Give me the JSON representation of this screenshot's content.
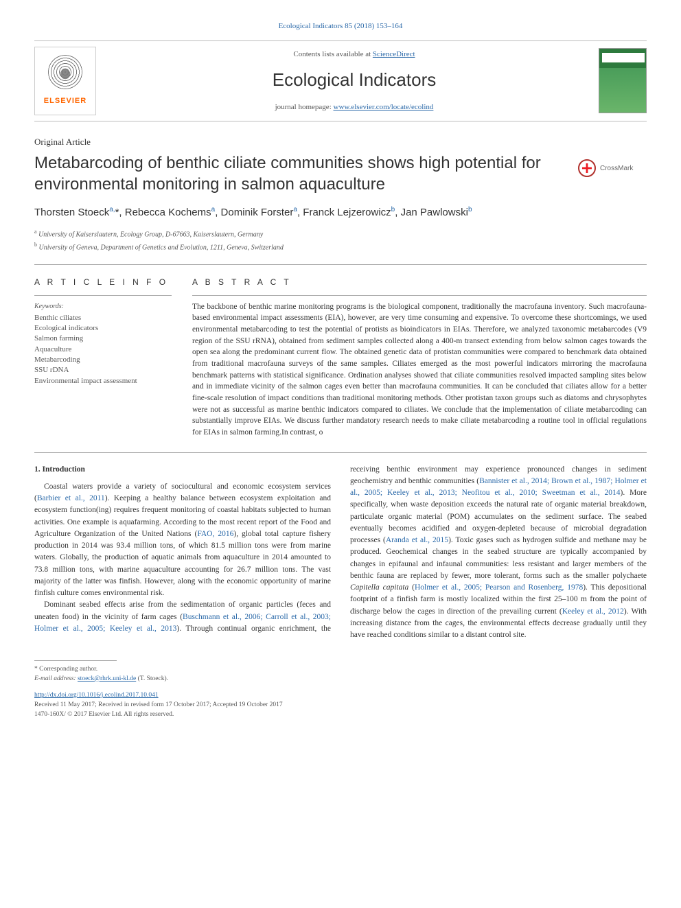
{
  "journal_ref": {
    "text": "Ecological Indicators 85 (2018) 153–164",
    "color": "#2968a8",
    "fontsize": 11
  },
  "header": {
    "contents_prefix": "Contents lists available at ",
    "contents_link": "ScienceDirect",
    "journal_title": "Ecological Indicators",
    "homepage_prefix": "journal homepage: ",
    "homepage_link": "www.elsevier.com/locate/ecolind",
    "elsevier_label": "ELSEVIER",
    "cover_colors": {
      "top": "#2d7a3d",
      "bottom": "#6ab56a"
    }
  },
  "article": {
    "type": "Original Article",
    "title": "Metabarcoding of benthic ciliate communities shows high potential for environmental monitoring in salmon aquaculture",
    "crossmark_label": "CrossMark"
  },
  "authors_html": "Thorsten Stoeck<sup>a,</sup>*, Rebecca Kochems<sup>a</sup>, Dominik Forster<sup>a</sup>, Franck Lejzerowicz<sup>b</sup>, Jan Pawlowski<sup>b</sup>",
  "affiliations": [
    {
      "sup": "a",
      "text": "University of Kaiserslautern, Ecology Group, D-67663, Kaiserslautern, Germany"
    },
    {
      "sup": "b",
      "text": "University of Geneva, Department of Genetics and Evolution, 1211, Geneva, Switzerland"
    }
  ],
  "info": {
    "heading": "A R T I C L E  I N F O",
    "keywords_label": "Keywords:",
    "keywords": [
      "Benthic ciliates",
      "Ecological indicators",
      "Salmon farming",
      "Aquaculture",
      "Metabarcoding",
      "SSU rDNA",
      "Environmental impact assessment"
    ]
  },
  "abstract": {
    "heading": "A B S T R A C T",
    "text": "The backbone of benthic marine monitoring programs is the biological component, traditionally the macrofauna inventory. Such macrofauna-based environmental impact assessments (EIA), however, are very time consuming and expensive. To overcome these shortcomings, we used environmental metabarcoding to test the potential of protists as bioindicators in EIAs. Therefore, we analyzed taxonomic metabarcodes (V9 region of the SSU rRNA), obtained from sediment samples collected along a 400-m transect extending from below salmon cages towards the open sea along the predominant current flow. The obtained genetic data of protistan communities were compared to benchmark data obtained from traditional macrofauna surveys of the same samples. Ciliates emerged as the most powerful indicators mirroring the macrofauna benchmark patterns with statistical significance. Ordination analyses showed that ciliate communities resolved impacted sampling sites below and in immediate vicinity of the salmon cages even better than macrofauna communities. It can be concluded that ciliates allow for a better fine-scale resolution of impact conditions than traditional monitoring methods. Other protistan taxon groups such as diatoms and chrysophytes were not as successful as marine benthic indicators compared to ciliates. We conclude that the implementation of ciliate metabarcoding can substantially improve EIAs. We discuss further mandatory research needs to make ciliate metabarcoding a routine tool in official regulations for EIAs in salmon farming.In contrast, o"
  },
  "body": {
    "section_number": "1.",
    "section_title": "Introduction",
    "p1_a": "Coastal waters provide a variety of sociocultural and economic ecosystem services (",
    "p1_cite1": "Barbier et al., 2011",
    "p1_b": "). Keeping a healthy balance between ecosystem exploitation and ecosystem function(ing) requires frequent monitoring of coastal habitats subjected to human activities. One example is aquafarming. According to the most recent report of the Food and Agriculture Organization of the United Nations (",
    "p1_cite2": "FAO, 2016",
    "p1_c": "), global total capture fishery production in 2014 was 93.4 million tons, of which 81.5 million tons were from marine waters. Globally, the production of aquatic animals from aquaculture in 2014 amounted to 73.8 million tons, with marine aquaculture accounting for 26.7 million tons. The vast majority of the latter was finfish. However, along with the economic opportunity of marine finfish culture comes environmental risk.",
    "p2_a": "Dominant seabed effects arise from the sedimentation of organic particles (feces and uneaten food) in the vicinity of farm cages (",
    "p2_cite1": "Buschmann et al., 2006; Carroll et al., 2003; Holmer et al., 2005; Keeley et al., 2013",
    "p2_b": "). Through continual organic enrichment, the receiving benthic environment may experience pronounced changes in sediment geochemistry and benthic communities (",
    "p2_cite2": "Bannister et al., 2014; Brown et al., 1987; Holmer et al., 2005; Keeley et al., 2013; Neofitou et al., 2010; Sweetman et al., 2014",
    "p2_c": "). More specifically, when waste deposition exceeds the natural rate of organic material breakdown, particulate organic material (POM) accumulates on the sediment surface. The seabed eventually becomes acidified and oxygen-depleted because of microbial degradation processes (",
    "p2_cite3": "Aranda et al., 2015",
    "p2_d": "). Toxic gases such as hydrogen sulfide and methane may be produced. Geochemical changes in the seabed structure are typically accompanied by changes in epifaunal and infaunal communities: less resistant and larger members of the benthic fauna are replaced by fewer, more tolerant, forms such as the smaller polychaete ",
    "p2_em": "Capitella capitata",
    "p2_e": " (",
    "p2_cite4": "Holmer et al., 2005; Pearson and Rosenberg, 1978",
    "p2_f": "). This depositional footprint of a finfish farm is mostly localized within the first 25–100 m from the point of discharge below the cages in direction of the prevailing current (",
    "p2_cite5": "Keeley et al., 2012",
    "p2_g": "). With increasing distance from the cages, the environmental effects decrease gradually until they have reached conditions similar to a distant control site."
  },
  "footer": {
    "corresponding": "* Corresponding author.",
    "email_label": "E-mail address:",
    "email": "stoeck@rhrk.uni-kl.de",
    "email_person": " (T. Stoeck).",
    "doi": "http://dx.doi.org/10.1016/j.ecolind.2017.10.041",
    "received": "Received 11 May 2017; Received in revised form 17 October 2017; Accepted 19 October 2017",
    "issn": "1470-160X/ © 2017 Elsevier Ltd. All rights reserved."
  },
  "style": {
    "link_color": "#2968a8",
    "text_color": "#333333",
    "muted_color": "#555555",
    "divider_color": "#aaaaaa",
    "body_fontsize": 11.5,
    "title_fontsize": 24,
    "journal_title_fontsize": 26
  }
}
